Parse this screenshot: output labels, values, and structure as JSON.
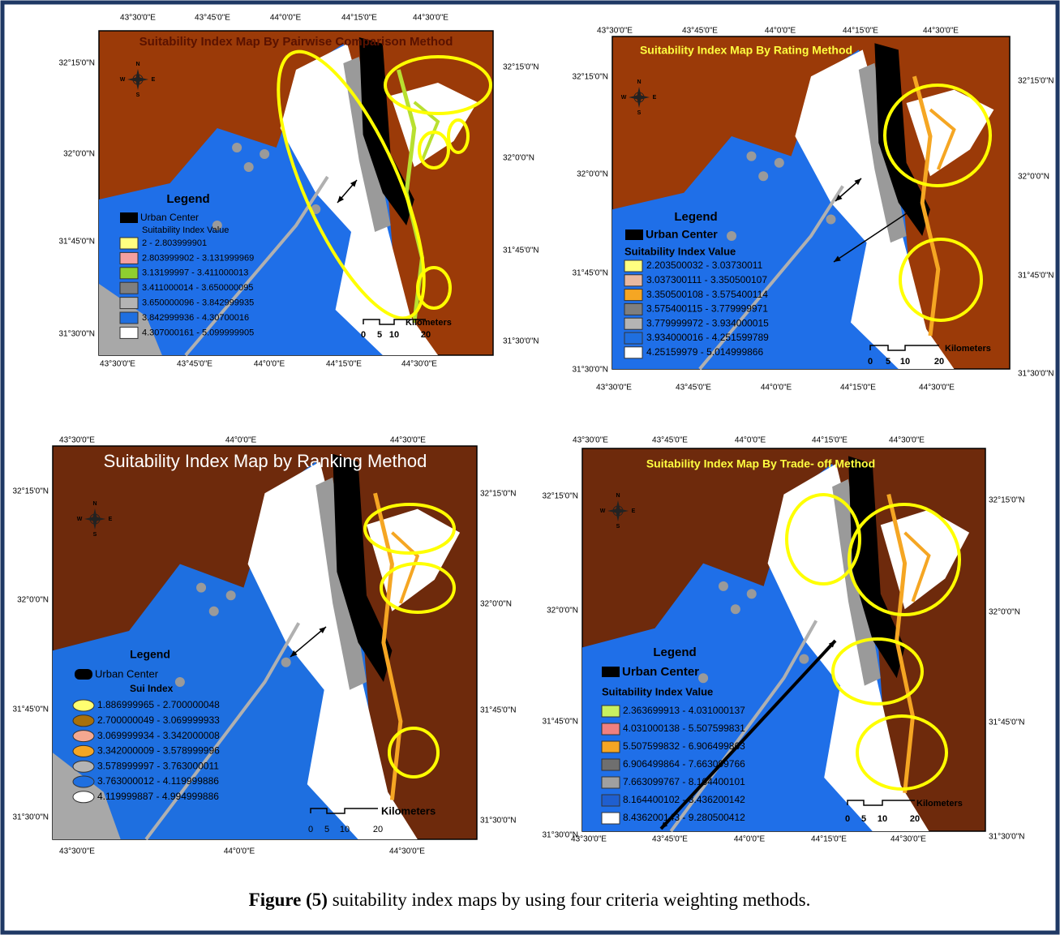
{
  "maps": [
    {
      "title": "Suitability Index Map By Pairwise Comparison Method",
      "ticks": {
        "top": [
          "43°30'0\"E",
          "43°45'0\"E",
          "44°0'0\"E",
          "44°15'0\"E",
          "44°30'0\"E"
        ],
        "bottom": [
          "43°30'0\"E",
          "43°45'0\"E",
          "44°0'0\"E",
          "44°15'0\"E",
          "44°30'0\"E"
        ],
        "left": [
          "32°15'0\"N",
          "32°0'0\"N",
          "31°45'0\"N",
          "31°30'0\"N"
        ],
        "right": [
          "32°15'0\"N",
          "32°0'0\"N",
          "31°45'0\"N",
          "31°30'0\"N"
        ]
      },
      "legend": {
        "title": "Legend",
        "urban": "Urban Center",
        "subtitle": "Suitability Index Value",
        "entries": [
          {
            "label": "2 - 2.803999901",
            "color": "#ffff80"
          },
          {
            "label": "2.803999902 - 3.131999969",
            "color": "#f4a0a0"
          },
          {
            "label": "3.13199997 - 3.411000013",
            "color": "#8fcf2f"
          },
          {
            "label": "3.411000014 - 3.650000095",
            "color": "#7f7f7f"
          },
          {
            "label": "3.650000096 - 3.842999935",
            "color": "#b4b4b4"
          },
          {
            "label": "3.842999936 - 4.30700016",
            "color": "#1f6fe0"
          },
          {
            "label": "4.307000161 - 5.099999905",
            "color": "#ffffff"
          }
        ]
      },
      "scale": {
        "labels": [
          "0",
          "5",
          "10",
          "20"
        ],
        "unit": "Kilometers"
      },
      "compass": [
        "N",
        "E",
        "S",
        "W"
      ]
    },
    {
      "title": "Suitability Index Map By Rating Method",
      "ticks": {
        "top": [
          "43°30'0\"E",
          "43°45'0\"E",
          "44°0'0\"E",
          "44°15'0\"E",
          "44°30'0\"E"
        ],
        "bottom": [
          "43°30'0\"E",
          "43°45'0\"E",
          "44°0'0\"E",
          "44°15'0\"E",
          "44°30'0\"E"
        ],
        "left": [
          "32°15'0\"N",
          "32°0'0\"N",
          "31°45'0\"N",
          "31°30'0\"N"
        ],
        "right": [
          "32°15'0\"N",
          "32°0'0\"N",
          "31°45'0\"N",
          "31°30'0\"N"
        ]
      },
      "legend": {
        "title": "Legend",
        "urban": "Urban Center",
        "subtitle": "Suitability Index Value",
        "entries": [
          {
            "label": "2.203500032 - 3.03730011",
            "color": "#ffff80"
          },
          {
            "label": "3.037300111 - 3.350500107",
            "color": "#e8b8a0"
          },
          {
            "label": "3.350500108 - 3.575400114",
            "color": "#f5a623"
          },
          {
            "label": "3.575400115 - 3.779999971",
            "color": "#7f7f7f"
          },
          {
            "label": "3.779999972 - 3.934000015",
            "color": "#b4b4b4"
          },
          {
            "label": "3.934000016 - 4.251599789",
            "color": "#1f6fe0"
          },
          {
            "label": "4.25159979 - 5.014999866",
            "color": "#ffffff"
          }
        ]
      },
      "scale": {
        "labels": [
          "0",
          "5",
          "10",
          "20"
        ],
        "unit": "Kilometers"
      },
      "compass": [
        "N",
        "E",
        "S",
        "W"
      ]
    },
    {
      "title": "Suitability Index Map by Ranking Method",
      "ticks": {
        "top": [
          "43°30'0\"E",
          "44°0'0\"E",
          "44°30'0\"E"
        ],
        "bottom": [
          "43°30'0\"E",
          "44°0'0\"E",
          "44°30'0\"E"
        ],
        "left": [
          "32°15'0\"N",
          "32°0'0\"N",
          "31°45'0\"N",
          "31°30'0\"N"
        ],
        "right": [
          "32°15'0\"N",
          "32°0'0\"N",
          "31°45'0\"N",
          "31°30'0\"N"
        ]
      },
      "legend": {
        "title": "Legend",
        "urban": "Urban Center",
        "subtitle": "Sui Index",
        "entries": [
          {
            "label": "1.886999965 - 2.700000048",
            "color": "#ffff70"
          },
          {
            "label": "2.700000049 - 3.069999933",
            "color": "#a8700a"
          },
          {
            "label": "3.069999934 - 3.342000008",
            "color": "#f4a890"
          },
          {
            "label": "3.342000009 - 3.578999996",
            "color": "#f5a623"
          },
          {
            "label": "3.578999997 - 3.763000011",
            "color": "#b4b4b4"
          },
          {
            "label": "3.763000012 - 4.119999886",
            "color": "#1f6fe0"
          },
          {
            "label": "4.119999887 - 4.994999886",
            "color": "#ffffff"
          }
        ]
      },
      "scale": {
        "labels": [
          "0",
          "5",
          "10",
          "20"
        ],
        "unit": "Kilometers"
      },
      "compass": [
        "N",
        "E",
        "S",
        "W"
      ]
    },
    {
      "title": "Suitability Index Map By Trade- off Method",
      "ticks": {
        "top": [
          "43°30'0\"E",
          "43°45'0\"E",
          "44°0'0\"E",
          "44°15'0\"E",
          "44°30'0\"E"
        ],
        "bottom": [
          "43°30'0\"E",
          "43°45'0\"E",
          "44°0'0\"E",
          "44°15'0\"E",
          "44°30'0\"E"
        ],
        "left": [
          "32°15'0\"N",
          "32°0'0\"N",
          "31°45'0\"N",
          "31°30'0\"N"
        ],
        "right": [
          "32°15'0\"N",
          "32°0'0\"N",
          "31°45'0\"N",
          "31°30'0\"N"
        ]
      },
      "legend": {
        "title": "Legend",
        "urban": "Urban Center",
        "subtitle": "Suitability Index Value",
        "entries": [
          {
            "label": "2.363699913 - 4.031000137",
            "color": "#c8f060"
          },
          {
            "label": "4.031000138 - 5.507599831",
            "color": "#f08080"
          },
          {
            "label": "5.507599832 - 6.906499863",
            "color": "#f5a623"
          },
          {
            "label": "6.906499864 - 7.663099766",
            "color": "#6f6f6f"
          },
          {
            "label": "7.663099767 - 8.164400101",
            "color": "#a0a0a0"
          },
          {
            "label": "8.164400102 - 8.436200142",
            "color": "#1f5fd0"
          },
          {
            "label": "8.436200143 - 9.280500412",
            "color": "#ffffff"
          }
        ]
      },
      "scale": {
        "labels": [
          "0",
          "5",
          "10",
          "20"
        ],
        "unit": "Kilometers"
      },
      "compass": [
        "N",
        "E",
        "S",
        "W"
      ]
    }
  ],
  "caption": {
    "label": "Figure (5)",
    "text": " suitability index maps by using four criteria weighting methods."
  }
}
